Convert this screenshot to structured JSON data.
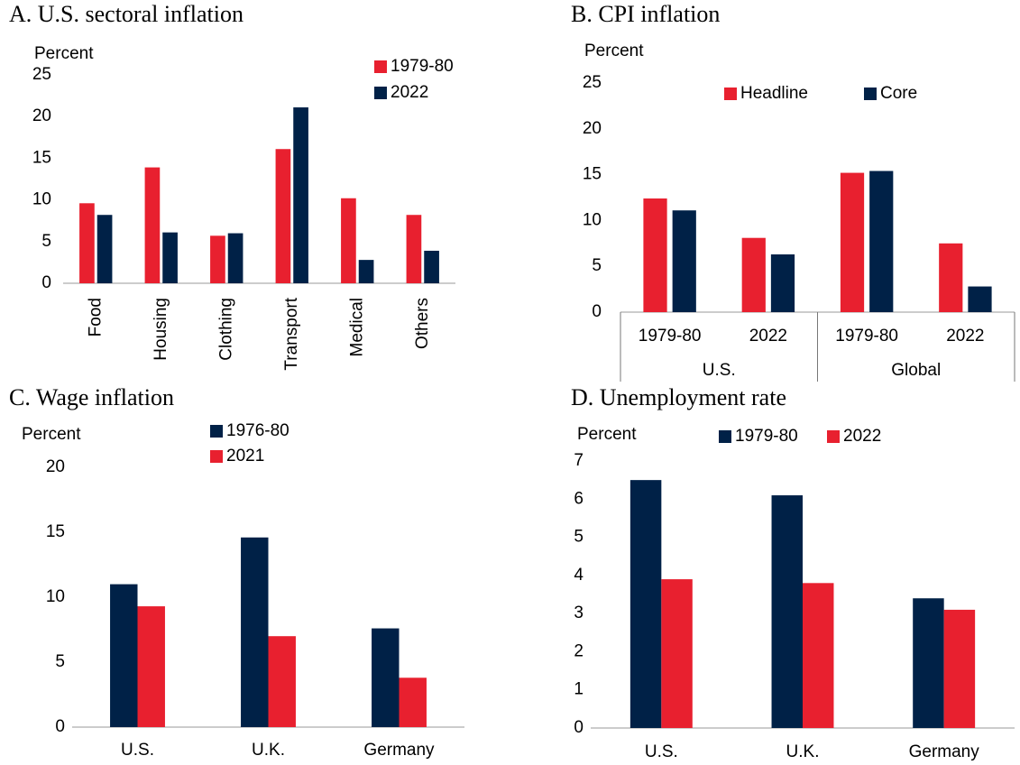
{
  "chart_data": [
    {
      "type": "bar",
      "title": "A. U.S. sectoral inflation",
      "y_label": "Percent",
      "categories": [
        "Food",
        "Housing",
        "Clothing",
        "Transport",
        "Medical",
        "Others"
      ],
      "series": [
        {
          "name": "1979-80",
          "color": "#e8202f",
          "values": [
            9.6,
            13.9,
            5.7,
            16.1,
            10.2,
            8.2
          ]
        },
        {
          "name": "2022",
          "color": "#002147",
          "values": [
            8.2,
            6.1,
            6.0,
            21.1,
            2.8,
            3.9
          ]
        }
      ],
      "ylim": [
        0,
        25
      ],
      "yticks": [
        0,
        5,
        10,
        15,
        20,
        25
      ]
    },
    {
      "type": "bar",
      "title": "B. CPI inflation",
      "y_label": "Percent",
      "categories": [
        "1979-80",
        "2022",
        "1979-80",
        "2022"
      ],
      "group_labels": [
        "U.S.",
        "Global"
      ],
      "series": [
        {
          "name": "Headline",
          "color": "#e8202f",
          "values": [
            12.4,
            8.1,
            15.2,
            7.5
          ]
        },
        {
          "name": "Core",
          "color": "#002147",
          "values": [
            11.1,
            6.3,
            15.4,
            2.8
          ]
        }
      ],
      "ylim": [
        0,
        25
      ],
      "yticks": [
        0,
        5,
        10,
        15,
        20,
        25
      ]
    },
    {
      "type": "bar",
      "title": "C. Wage inflation",
      "y_label": "Percent",
      "categories": [
        "U.S.",
        "U.K.",
        "Germany"
      ],
      "series": [
        {
          "name": "1976-80",
          "color": "#002147",
          "values": [
            11.0,
            14.6,
            7.6
          ]
        },
        {
          "name": "2021",
          "color": "#e8202f",
          "values": [
            9.3,
            7.0,
            3.8
          ]
        }
      ],
      "ylim": [
        0,
        20
      ],
      "yticks": [
        0,
        5,
        10,
        15,
        20
      ]
    },
    {
      "type": "bar",
      "title": "D. Unemployment rate",
      "y_label": "Percent",
      "categories": [
        "U.S.",
        "U.K.",
        "Germany"
      ],
      "series": [
        {
          "name": "1979-80",
          "color": "#002147",
          "values": [
            6.5,
            6.1,
            3.4
          ]
        },
        {
          "name": "2022",
          "color": "#e8202f",
          "values": [
            3.9,
            3.8,
            3.1
          ]
        }
      ],
      "ylim": [
        0,
        7
      ],
      "yticks": [
        0,
        1,
        2,
        3,
        4,
        5,
        6,
        7
      ]
    }
  ]
}
